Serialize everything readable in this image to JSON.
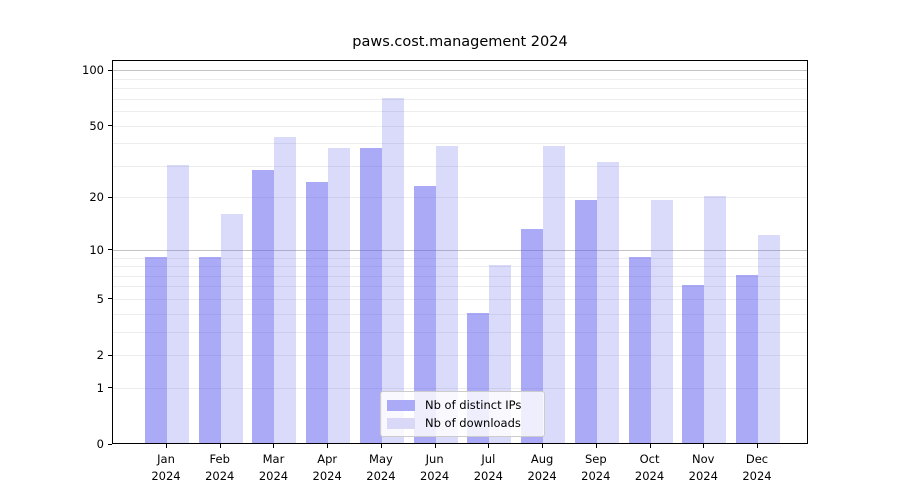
{
  "chart_data": {
    "type": "bar",
    "title": "paws.cost.management 2024",
    "categories": [
      "Jan",
      "Feb",
      "Mar",
      "Apr",
      "May",
      "Jun",
      "Jul",
      "Aug",
      "Sep",
      "Oct",
      "Nov",
      "Dec"
    ],
    "x_year_label": "2024",
    "series": [
      {
        "name": "Nb of distinct IPs",
        "color": "rgba(85,85,238,0.50)",
        "legend_color": "#aaaaf6",
        "values": [
          9,
          9,
          28,
          24,
          37,
          23,
          4,
          13,
          19,
          9,
          6,
          7
        ]
      },
      {
        "name": "Nb of downloads",
        "color": "rgba(85,85,238,0.22)",
        "legend_color": "#d9d9f7",
        "values": [
          30,
          16,
          43,
          37,
          70,
          38,
          8,
          38,
          31,
          19,
          20,
          12
        ]
      }
    ],
    "y_axis": {
      "scale": "log1p",
      "ticks": [
        100,
        50,
        20,
        10,
        5,
        2,
        1,
        0
      ],
      "range": [
        0,
        113
      ]
    },
    "gridlines": {
      "minor": [
        1,
        2,
        3,
        4,
        5,
        6,
        7,
        8,
        9,
        20,
        30,
        40,
        50,
        60,
        70,
        80,
        90
      ],
      "major": [
        10,
        100
      ]
    },
    "legend_position": "lower-center",
    "xlabel": "",
    "ylabel": ""
  }
}
